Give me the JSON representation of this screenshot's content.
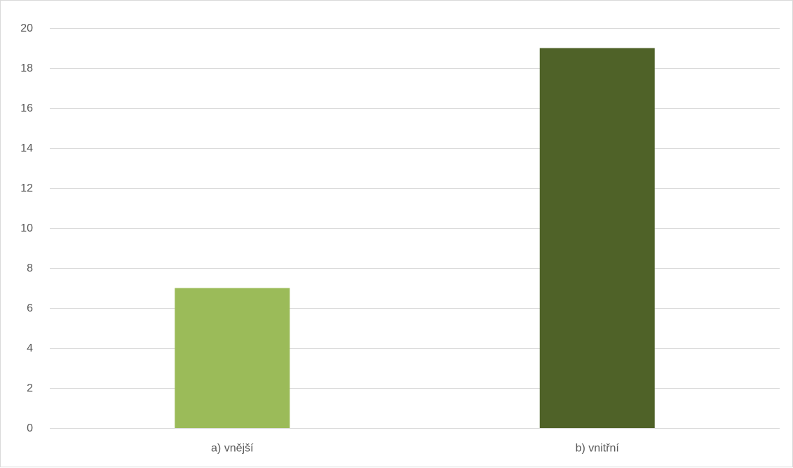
{
  "chart_data": {
    "type": "bar",
    "title": "",
    "xlabel": "",
    "ylabel": "",
    "categories": [
      "a) vnější",
      "b) vnitřní"
    ],
    "values": [
      7,
      19
    ],
    "bar_colors": [
      "#9bbb59",
      "#4f6228"
    ],
    "ylim": [
      0,
      20
    ],
    "y_ticks": [
      "0",
      "2",
      "4",
      "6",
      "8",
      "10",
      "12",
      "14",
      "16",
      "18",
      "20"
    ],
    "grid": true,
    "legend": "none"
  }
}
